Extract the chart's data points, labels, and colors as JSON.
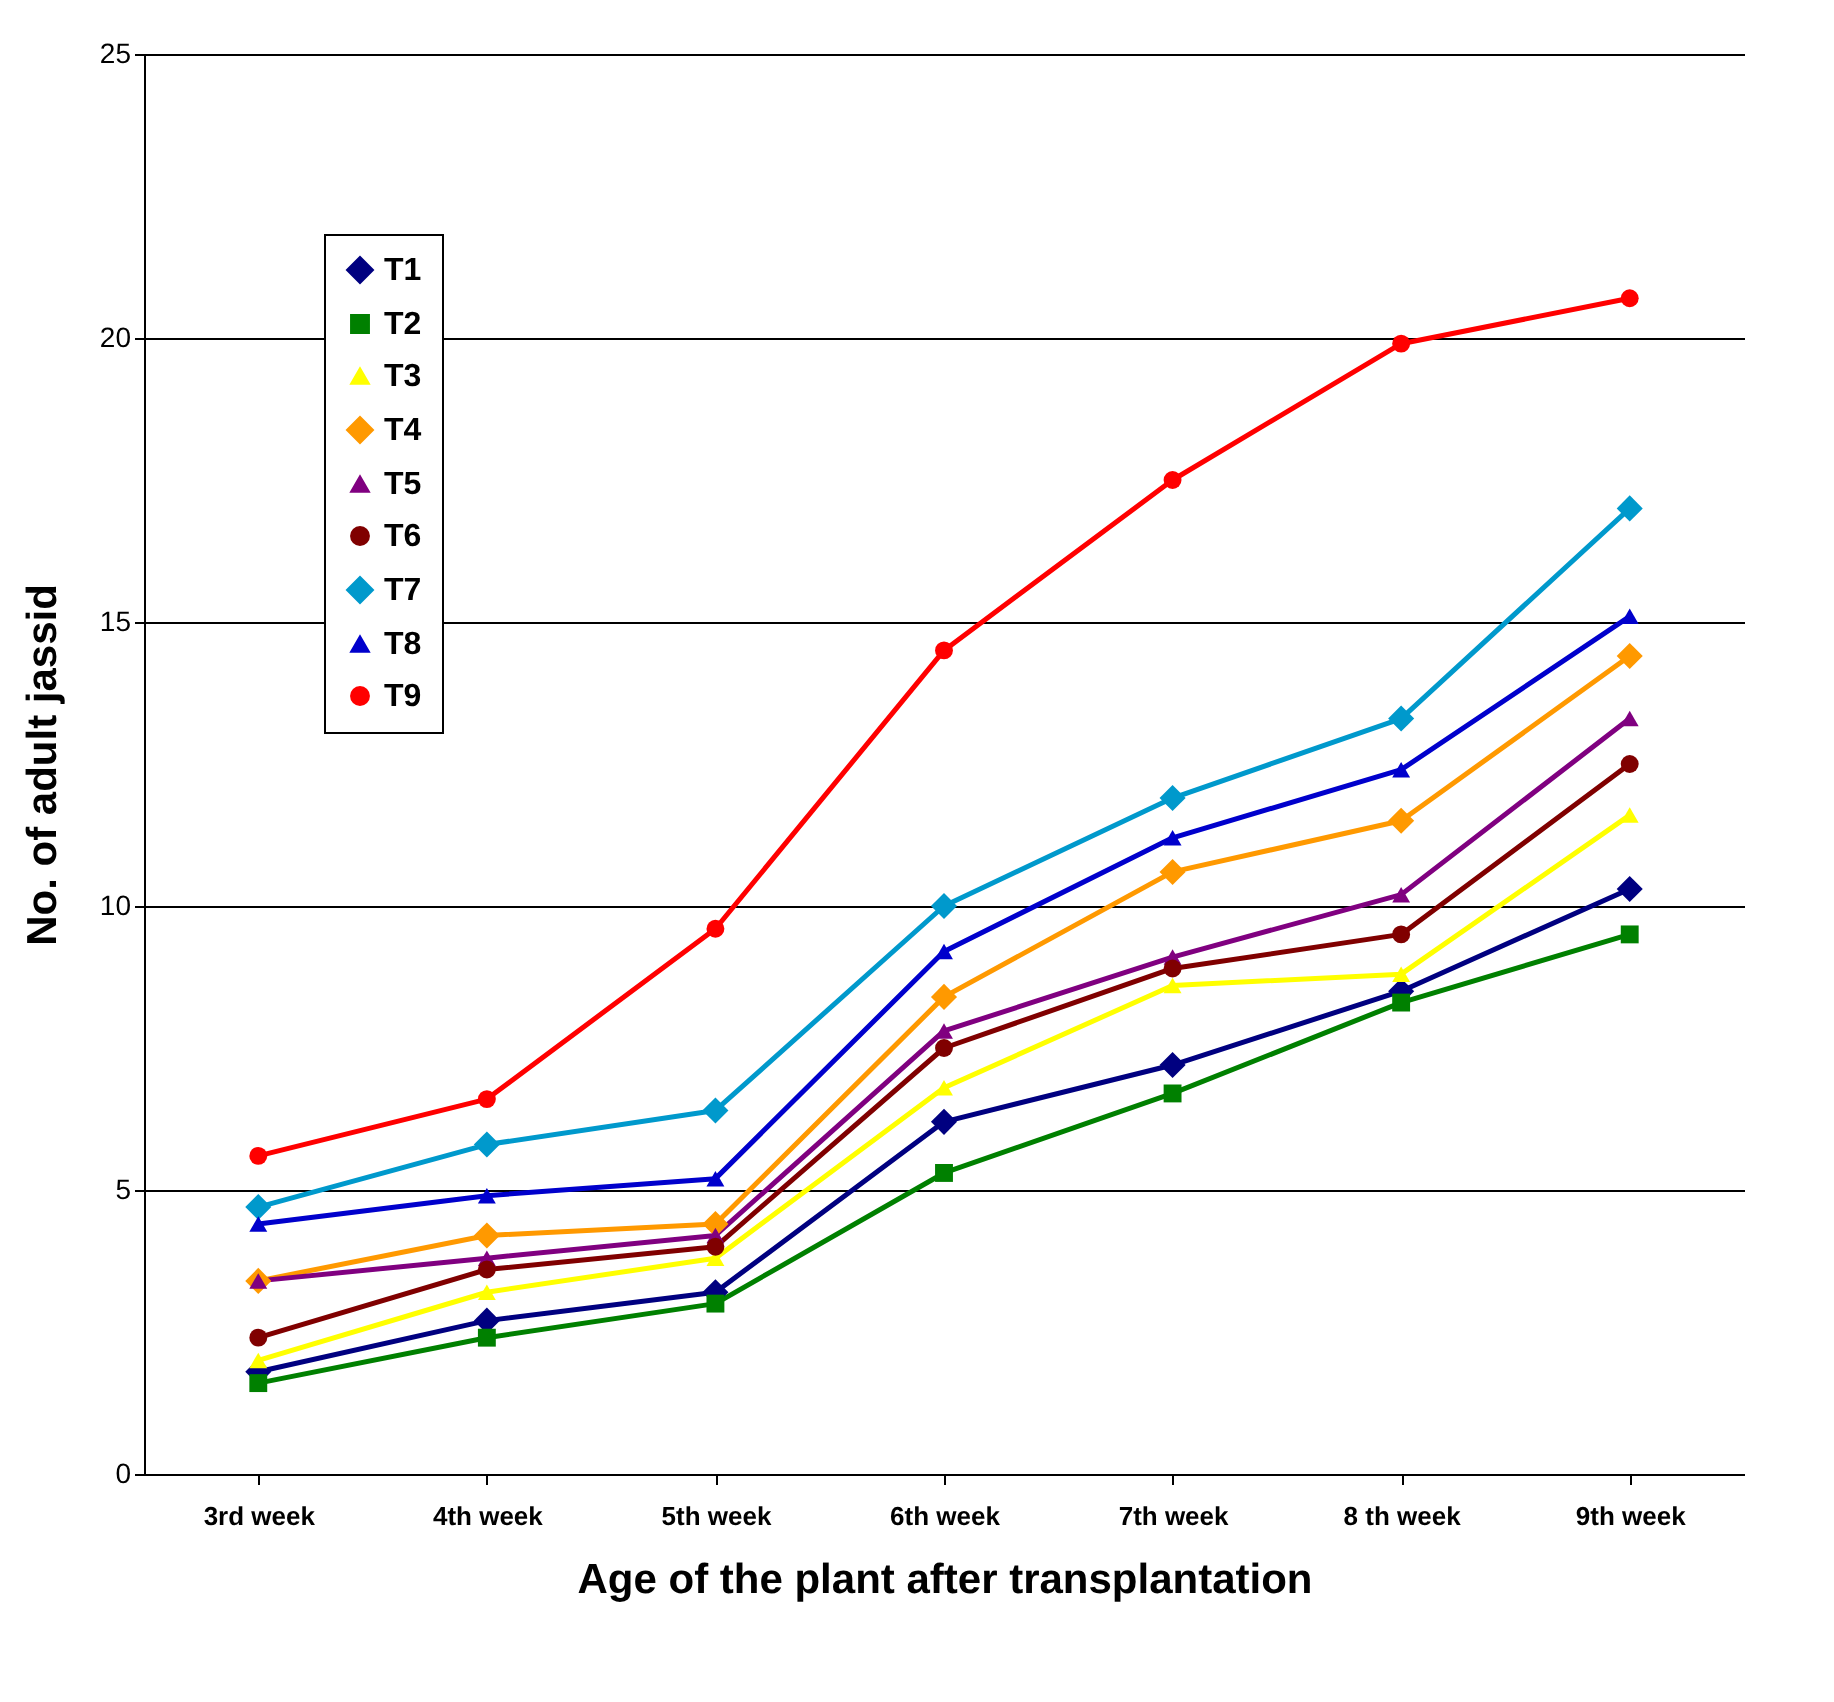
{
  "chart_data": {
    "type": "line",
    "xlabel": "Age of the plant after transplantation",
    "ylabel": "No. of adult jassid",
    "categories": [
      "3rd week",
      "4th week",
      "5th week",
      "6th week",
      "7th week",
      "8 th week",
      "9th week"
    ],
    "ylim": [
      0,
      25
    ],
    "yticks": [
      0,
      5,
      10,
      15,
      20,
      25
    ],
    "grid": "y",
    "legend": "top left",
    "series": [
      {
        "name": "T1",
        "color": "#000080",
        "marker": "diamond",
        "values": [
          1.8,
          2.7,
          3.2,
          6.2,
          7.2,
          8.5,
          10.3
        ]
      },
      {
        "name": "T2",
        "color": "#008000",
        "marker": "square",
        "values": [
          1.6,
          2.4,
          3.0,
          5.3,
          6.7,
          8.3,
          9.5
        ]
      },
      {
        "name": "T3",
        "color": "#ffff00",
        "marker": "triangle",
        "values": [
          2.0,
          3.2,
          3.8,
          6.8,
          8.6,
          8.8,
          11.6
        ]
      },
      {
        "name": "T4",
        "color": "#ff9900",
        "marker": "diamond",
        "values": [
          3.4,
          4.2,
          4.4,
          8.4,
          10.6,
          11.5,
          14.4
        ]
      },
      {
        "name": "T5",
        "color": "#800080",
        "marker": "triangle",
        "values": [
          3.4,
          3.8,
          4.2,
          7.8,
          9.1,
          10.2,
          13.3
        ]
      },
      {
        "name": "T6",
        "color": "#800000",
        "marker": "circle",
        "values": [
          2.4,
          3.6,
          4.0,
          7.5,
          8.9,
          9.5,
          12.5
        ]
      },
      {
        "name": "T7",
        "color": "#0099cc",
        "marker": "diamond",
        "values": [
          4.7,
          5.8,
          6.4,
          10.0,
          11.9,
          13.3,
          17.0
        ]
      },
      {
        "name": "T8",
        "color": "#0000cc",
        "marker": "triangle",
        "values": [
          4.4,
          4.9,
          5.2,
          9.2,
          11.2,
          12.4,
          15.1
        ]
      },
      {
        "name": "T9",
        "color": "#ff0000",
        "marker": "circle",
        "values": [
          5.6,
          6.6,
          9.6,
          14.5,
          17.5,
          19.9,
          20.7
        ]
      }
    ]
  }
}
